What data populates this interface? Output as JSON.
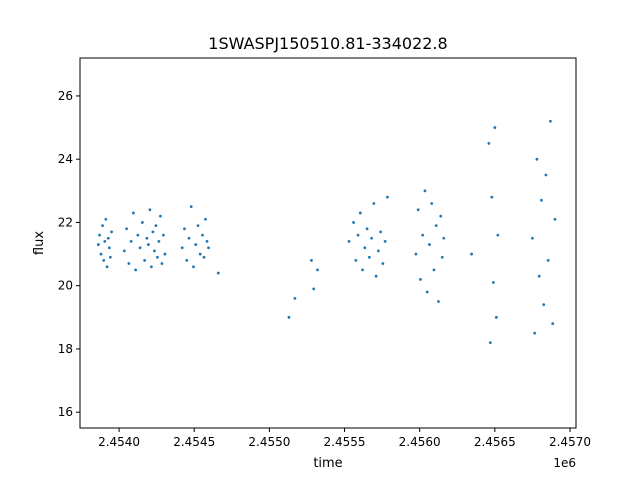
{
  "chart_data": {
    "type": "scatter",
    "title": "1SWASPJ150510.81-334022.8",
    "xlabel": "time",
    "ylabel": "flux",
    "x_offset_label": "1e6",
    "x_scale": 1000000,
    "xlim": [
      2453740,
      2457040
    ],
    "ylim": [
      15.5,
      27.2
    ],
    "x_ticks": [
      2454000,
      2454500,
      2455000,
      2455500,
      2456000,
      2456500,
      2457000
    ],
    "x_tick_labels": [
      "2.4540",
      "2.4545",
      "2.4550",
      "2.4555",
      "2.4560",
      "2.4565",
      "2.4570"
    ],
    "y_ticks": [
      16,
      18,
      20,
      22,
      24,
      26
    ],
    "y_tick_labels": [
      "16",
      "18",
      "20",
      "22",
      "24",
      "26"
    ],
    "grid": false,
    "legend": "none",
    "marker_color": "#1f77b4",
    "marker": "point",
    "series": [
      {
        "x": [
          2453862,
          2453870,
          2453880,
          2453890,
          2453898,
          2453905,
          2453912,
          2453920,
          2453928,
          2453935,
          2453942,
          2453950,
          2454035,
          2454050,
          2454065,
          2454080,
          2454095,
          2454110,
          2454125,
          2454140,
          2454155,
          2454170,
          2454185,
          2454195,
          2454205,
          2454215,
          2454225,
          2454235,
          2454245,
          2454255,
          2454265,
          2454275,
          2454285,
          2454295,
          2454305,
          2454420,
          2454435,
          2454450,
          2454465,
          2454480,
          2454495,
          2454510,
          2454525,
          2454540,
          2454555,
          2454565,
          2454575,
          2454585,
          2454595,
          2454660,
          2455130,
          2455170,
          2455280,
          2455295,
          2455320,
          2455530,
          2455560,
          2455575,
          2455590,
          2455605,
          2455620,
          2455635,
          2455650,
          2455665,
          2455680,
          2455695,
          2455710,
          2455725,
          2455740,
          2455755,
          2455770,
          2455785,
          2455975,
          2455990,
          2456005,
          2456020,
          2456035,
          2456050,
          2456065,
          2456080,
          2456095,
          2456110,
          2456125,
          2456140,
          2456150,
          2456160,
          2456345,
          2456460,
          2456470,
          2456480,
          2456490,
          2456500,
          2456510,
          2456520,
          2456750,
          2456765,
          2456780,
          2456795,
          2456810,
          2456825,
          2456840,
          2456855,
          2456870,
          2456885,
          2456900
        ],
        "y": [
          21.3,
          21.6,
          21.0,
          21.9,
          20.8,
          21.4,
          22.1,
          20.6,
          21.5,
          21.2,
          20.9,
          21.7,
          21.1,
          21.8,
          20.7,
          21.4,
          22.3,
          20.5,
          21.6,
          21.2,
          22.0,
          20.8,
          21.5,
          21.3,
          22.4,
          20.6,
          21.7,
          21.1,
          21.9,
          20.9,
          21.4,
          22.2,
          20.7,
          21.6,
          21.0,
          21.2,
          21.8,
          20.8,
          21.5,
          22.5,
          20.6,
          21.3,
          21.9,
          21.0,
          21.6,
          20.9,
          22.1,
          21.4,
          21.2,
          20.4,
          19.0,
          19.6,
          20.8,
          19.9,
          20.5,
          21.4,
          22.0,
          20.8,
          21.6,
          22.3,
          20.5,
          21.2,
          21.8,
          20.9,
          21.5,
          22.6,
          20.3,
          21.1,
          21.7,
          20.7,
          21.4,
          22.8,
          21.0,
          22.4,
          20.2,
          21.6,
          23.0,
          19.8,
          21.3,
          22.6,
          20.5,
          21.9,
          19.5,
          22.2,
          20.9,
          21.5,
          21.0,
          24.5,
          18.2,
          22.8,
          20.1,
          25.0,
          19.0,
          21.6,
          21.5,
          18.5,
          24.0,
          20.3,
          22.7,
          19.4,
          23.5,
          20.8,
          25.2,
          18.8,
          22.1
        ]
      }
    ]
  }
}
